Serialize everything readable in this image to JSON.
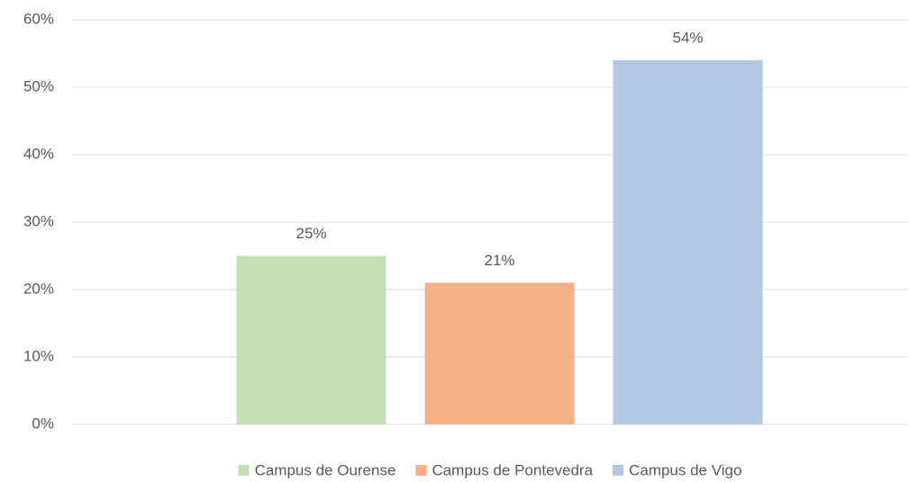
{
  "chart_data": {
    "type": "bar",
    "categories": [
      null
    ],
    "series": [
      {
        "name": "Campus de Ourense",
        "color": "#c5e0b4",
        "values": [
          25
        ],
        "value_labels": [
          "25%"
        ]
      },
      {
        "name": "Campus de Pontevedra",
        "color": "#f4b183",
        "values": [
          21
        ],
        "value_labels": [
          "21%"
        ]
      },
      {
        "name": "Campus de Vigo",
        "color": "#b4c7e7",
        "values": [
          54
        ],
        "value_labels": [
          "54%"
        ]
      }
    ],
    "ylim": [
      0,
      60
    ],
    "yticks": [
      {
        "value": 0,
        "label": "0%"
      },
      {
        "value": 10,
        "label": "10%"
      },
      {
        "value": 20,
        "label": "20%"
      },
      {
        "value": 30,
        "label": "30%"
      },
      {
        "value": 40,
        "label": "40%"
      },
      {
        "value": 50,
        "label": "50%"
      },
      {
        "value": 60,
        "label": "60%"
      }
    ],
    "grid": true,
    "legend": "bottom"
  }
}
